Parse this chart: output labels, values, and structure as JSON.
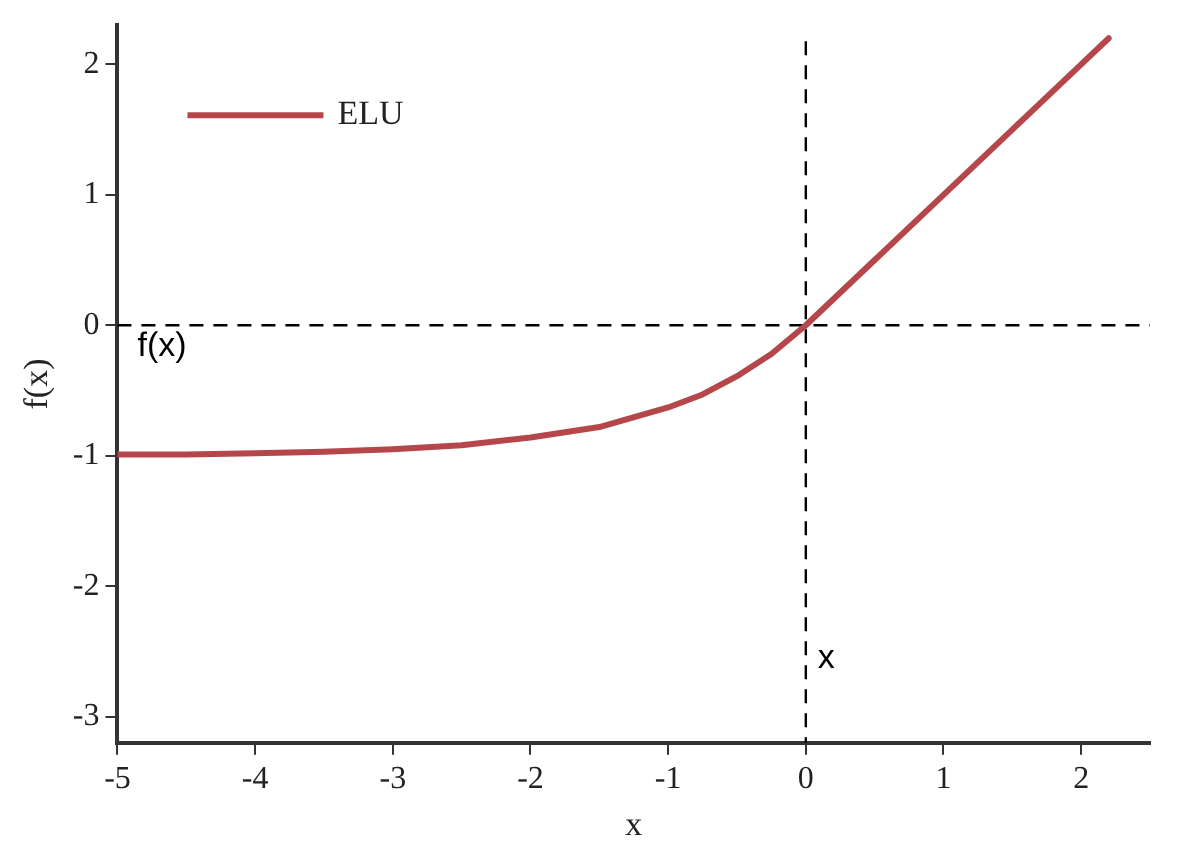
{
  "chart_data": {
    "type": "line",
    "xlabel": "x",
    "ylabel": "f(x)",
    "series": [
      {
        "name": "ELU",
        "color": "#b5474b",
        "x": [
          -5,
          -4.5,
          -4,
          -3.5,
          -3,
          -2.5,
          -2,
          -1.5,
          -1,
          -0.75,
          -0.5,
          -0.25,
          0,
          0.5,
          1,
          1.5,
          2,
          2.2
        ],
        "values": [
          -0.99,
          -0.99,
          -0.98,
          -0.97,
          -0.95,
          -0.92,
          -0.86,
          -0.78,
          -0.63,
          -0.53,
          -0.39,
          -0.22,
          0,
          0.5,
          1,
          1.5,
          2,
          2.2
        ]
      }
    ],
    "xlim": [
      -5,
      2.5
    ],
    "xticks": [
      -5,
      -4,
      -3,
      -2,
      -1,
      0,
      1,
      2
    ],
    "ylim": [
      -3.2,
      2.3
    ],
    "yticks": [
      -3,
      -2,
      -1,
      0,
      1,
      2
    ],
    "ref_lines": [
      {
        "axis": "x",
        "value": 0,
        "label": "x",
        "line_style": "dashed",
        "color": "#000000"
      },
      {
        "axis": "y",
        "value": 0,
        "label": "f(x)",
        "line_style": "dashed",
        "color": "#000000"
      }
    ],
    "grid": false,
    "legend": "top left",
    "marker": "none",
    "line_style": "solid"
  }
}
